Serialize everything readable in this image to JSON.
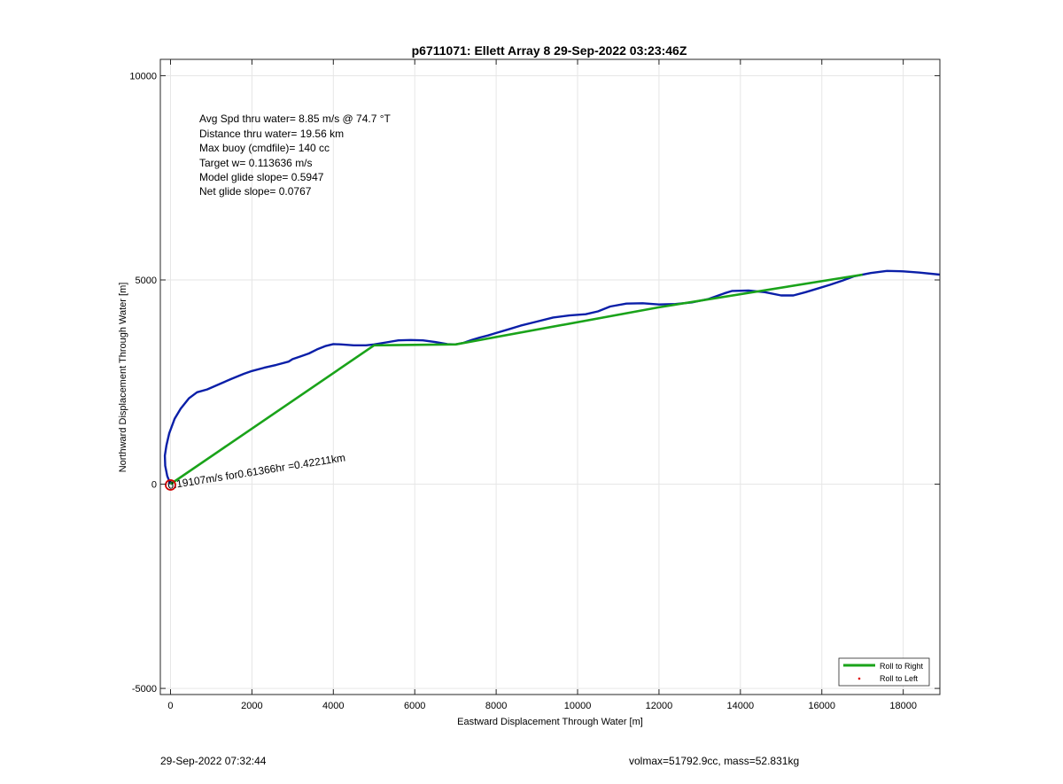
{
  "chart_data": {
    "type": "line",
    "title": "p6711071: Ellett Array 8 29-Sep-2022 03:23:46Z",
    "xlabel": "Eastward Displacement Through Water [m]",
    "ylabel": "Northward Displacement Through Water [m]",
    "xlim": [
      -250,
      18900
    ],
    "ylim": [
      -5150,
      10400
    ],
    "xticks": [
      0,
      2000,
      4000,
      6000,
      8000,
      10000,
      12000,
      14000,
      16000,
      18000
    ],
    "yticks": [
      -5000,
      0,
      5000,
      10000
    ],
    "grid": true,
    "legend_position": "bottom-right",
    "legend": [
      {
        "label": "Roll to Right",
        "color": "#1aa31a",
        "style": "line"
      },
      {
        "label": "Roll to Left",
        "color": "#e00000",
        "style": "dot"
      }
    ],
    "stats_lines": [
      "Avg Spd thru water=  8.85 m/s @  74.7 °T",
      "Distance thru water= 19.56 km",
      "Max buoy (cmdfile)= 140 cc",
      "Target w= 0.113636 m/s",
      "Model glide slope= 0.5947",
      "Net glide slope= 0.0767"
    ],
    "annotation": "0.19107m/s for0.61366hr =0.42211km",
    "series": [
      {
        "color": "#0a1fa8",
        "x": [
          0,
          -80,
          -130,
          -140,
          -100,
          -30,
          100,
          250,
          450,
          650,
          900,
          1200,
          1500,
          1800,
          2000,
          2300,
          2600,
          2900,
          3000,
          3200,
          3400,
          3600,
          3800,
          4000,
          4200,
          4500,
          4800,
          5000,
          5300,
          5600,
          5900,
          6200,
          6500,
          6800,
          7000,
          7200,
          7400,
          7600,
          7800,
          8000,
          8300,
          8600,
          9000,
          9400,
          9800,
          10200,
          10500,
          10800,
          11200,
          11600,
          12000,
          12400,
          12800,
          13200,
          13600,
          13800,
          14200,
          14600,
          15000,
          15300,
          15600,
          15900,
          16200,
          16500,
          16800,
          17200,
          17600,
          18000,
          18400,
          18900
        ],
        "y": [
          0,
          200,
          450,
          700,
          950,
          1250,
          1600,
          1850,
          2100,
          2250,
          2320,
          2450,
          2580,
          2700,
          2770,
          2850,
          2920,
          3000,
          3060,
          3130,
          3200,
          3300,
          3380,
          3430,
          3420,
          3400,
          3400,
          3420,
          3470,
          3520,
          3530,
          3520,
          3480,
          3430,
          3420,
          3460,
          3530,
          3590,
          3640,
          3700,
          3790,
          3880,
          3980,
          4080,
          4130,
          4160,
          4230,
          4350,
          4420,
          4430,
          4400,
          4410,
          4450,
          4530,
          4670,
          4730,
          4740,
          4700,
          4620,
          4620,
          4700,
          4790,
          4880,
          4980,
          5090,
          5170,
          5220,
          5210,
          5180,
          5130
        ]
      },
      {
        "color": "#1aa31a",
        "x": [
          0,
          5000,
          7000,
          12000,
          17000
        ],
        "y": [
          0,
          3400,
          3420,
          4330,
          5130
        ]
      }
    ],
    "markers": [
      {
        "x": 0,
        "y": -20,
        "color": "#d00000",
        "shape": "circle"
      }
    ]
  },
  "footer": {
    "timestamp": "29-Sep-2022 07:32:44",
    "info": "volmax=51792.9cc, mass=52.831kg"
  }
}
